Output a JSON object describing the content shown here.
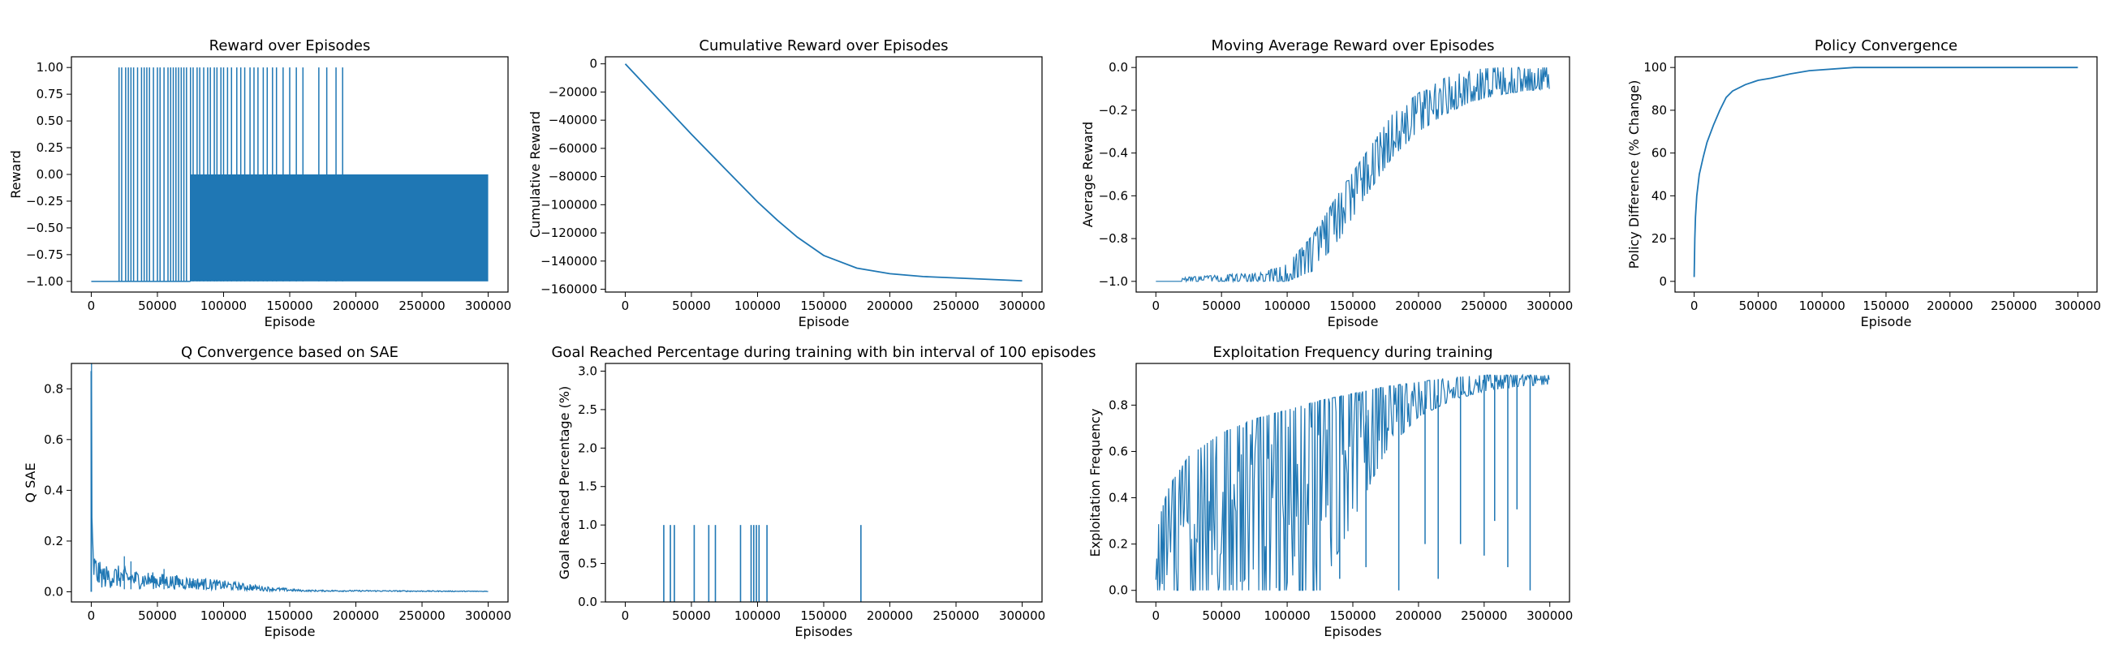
{
  "figure": {
    "suptitle": "",
    "line_color": "#1f77b4"
  },
  "chart_data": [
    {
      "id": "reward",
      "type": "line",
      "title": "Reward over Episodes",
      "xlabel": "Episode",
      "ylabel": "Reward",
      "xlim": [
        -15000,
        315000
      ],
      "ylim": [
        -1.1,
        1.1
      ],
      "xticks": [
        0,
        50000,
        100000,
        150000,
        200000,
        250000,
        300000
      ],
      "xtick_labels": [
        "0",
        "50000",
        "100000",
        "150000",
        "200000",
        "250000",
        "300000"
      ],
      "yticks": [
        -1.0,
        -0.75,
        -0.5,
        -0.25,
        0.0,
        0.25,
        0.5,
        0.75,
        1.0
      ],
      "ytick_labels": [
        "−1.00",
        "−0.75",
        "−0.50",
        "−0.25",
        "0.00",
        "0.25",
        "0.50",
        "0.75",
        "1.00"
      ],
      "grid": false,
      "series": [
        {
          "x": [
            0,
            20000,
            75000,
            300000
          ],
          "y": [
            -1.0,
            -1.0,
            0.0,
            0.0
          ],
          "band": {
            "x": [
              75000,
              300000
            ],
            "low": -1.0,
            "high": 0.0
          },
          "spikes_to": 1.0,
          "spikes_x": [
            21000,
            23000,
            26000,
            28000,
            30000,
            32000,
            35000,
            38000,
            40000,
            42000,
            44000,
            47000,
            50000,
            52000,
            55000,
            58000,
            60000,
            62000,
            64000,
            66000,
            68000,
            70000,
            72000,
            75000,
            77000,
            80000,
            82000,
            85000,
            88000,
            90000,
            93000,
            95000,
            98000,
            100000,
            103000,
            106000,
            110000,
            113000,
            116000,
            120000,
            123000,
            126000,
            130000,
            133000,
            137000,
            140000,
            145000,
            150000,
            155000,
            160000,
            172000,
            178000,
            185000,
            190000
          ]
        }
      ]
    },
    {
      "id": "cumulative",
      "type": "line",
      "title": "Cumulative Reward over Episodes",
      "xlabel": "Episode",
      "ylabel": "Cumulative Reward",
      "xlim": [
        -15000,
        315000
      ],
      "ylim": [
        -162000,
        5000
      ],
      "xticks": [
        0,
        50000,
        100000,
        150000,
        200000,
        250000,
        300000
      ],
      "xtick_labels": [
        "0",
        "50000",
        "100000",
        "150000",
        "200000",
        "250000",
        "300000"
      ],
      "yticks": [
        0,
        -20000,
        -40000,
        -60000,
        -80000,
        -100000,
        -120000,
        -140000,
        -160000
      ],
      "ytick_labels": [
        "0",
        "−20000",
        "−40000",
        "−60000",
        "−80000",
        "−100000",
        "−120000",
        "−140000",
        "−160000"
      ],
      "grid": false,
      "series": [
        {
          "x": [
            0,
            25000,
            50000,
            75000,
            100000,
            115000,
            130000,
            150000,
            175000,
            200000,
            225000,
            250000,
            275000,
            300000
          ],
          "y": [
            0,
            -25000,
            -50000,
            -74000,
            -98000,
            -111000,
            -123000,
            -136000,
            -145000,
            -149000,
            -151000,
            -152000,
            -153000,
            -154000
          ]
        }
      ]
    },
    {
      "id": "moving-average",
      "type": "line",
      "title": "Moving Average Reward over Episodes",
      "xlabel": "Episode",
      "ylabel": "Average Reward",
      "xlim": [
        -15000,
        315000
      ],
      "ylim": [
        -1.05,
        0.05
      ],
      "xticks": [
        0,
        50000,
        100000,
        150000,
        200000,
        250000,
        300000
      ],
      "xtick_labels": [
        "0",
        "50000",
        "100000",
        "150000",
        "200000",
        "250000",
        "300000"
      ],
      "yticks": [
        -1.0,
        -0.8,
        -0.6,
        -0.4,
        -0.2,
        0.0
      ],
      "ytick_labels": [
        "−1.0",
        "−0.8",
        "−0.6",
        "−0.4",
        "−0.2",
        "0.0"
      ],
      "grid": false,
      "series": [
        {
          "x": [
            0,
            25000,
            50000,
            80000,
            100000,
            120000,
            140000,
            160000,
            180000,
            200000,
            220000,
            240000,
            260000,
            280000,
            300000
          ],
          "y_low": [
            -1.0,
            -1.0,
            -1.0,
            -1.0,
            -1.0,
            -0.95,
            -0.8,
            -0.6,
            -0.42,
            -0.3,
            -0.22,
            -0.16,
            -0.13,
            -0.11,
            -0.1
          ],
          "y_high": [
            -1.0,
            -0.98,
            -0.97,
            -0.96,
            -0.92,
            -0.78,
            -0.58,
            -0.4,
            -0.22,
            -0.12,
            -0.05,
            -0.01,
            0.0,
            0.0,
            0.0
          ],
          "noise_from": 20000
        }
      ]
    },
    {
      "id": "policy-convergence",
      "type": "line",
      "title": "Policy Convergence",
      "xlabel": "Episode",
      "ylabel": "Policy Difference (% Change)",
      "xlim": [
        -15000,
        315000
      ],
      "ylim": [
        -5,
        105
      ],
      "xticks": [
        0,
        50000,
        100000,
        150000,
        200000,
        250000,
        300000
      ],
      "xtick_labels": [
        "0",
        "50000",
        "100000",
        "150000",
        "200000",
        "250000",
        "300000"
      ],
      "yticks": [
        0,
        20,
        40,
        60,
        80,
        100
      ],
      "ytick_labels": [
        "0",
        "20",
        "40",
        "60",
        "80",
        "100"
      ],
      "grid": false,
      "series": [
        {
          "x": [
            0,
            500,
            1000,
            2000,
            4000,
            7000,
            10000,
            15000,
            20000,
            25000,
            30000,
            40000,
            50000,
            60000,
            75000,
            90000,
            125000,
            200000,
            300000
          ],
          "y": [
            2,
            20,
            30,
            40,
            50,
            58,
            65,
            73,
            80,
            86,
            89,
            92,
            94,
            95,
            97,
            98.5,
            100,
            100,
            100
          ]
        }
      ]
    },
    {
      "id": "q-convergence",
      "type": "line",
      "title": "Q Convergence based on SAE",
      "xlabel": "Episode",
      "ylabel": "Q SAE",
      "xlim": [
        -15000,
        315000
      ],
      "ylim": [
        -0.04,
        0.9
      ],
      "xticks": [
        0,
        50000,
        100000,
        150000,
        200000,
        250000,
        300000
      ],
      "xtick_labels": [
        "0",
        "50000",
        "100000",
        "150000",
        "200000",
        "250000",
        "300000"
      ],
      "yticks": [
        0.0,
        0.2,
        0.4,
        0.6,
        0.8
      ],
      "ytick_labels": [
        "0.0",
        "0.2",
        "0.4",
        "0.6",
        "0.8"
      ],
      "grid": false,
      "series": [
        {
          "x": [
            0,
            300,
            800,
            1500,
            3000,
            6000,
            10000,
            20000,
            30000,
            50000,
            75000,
            100000,
            130000,
            160000,
            300000
          ],
          "y": [
            0.87,
            0.27,
            0.2,
            0.12,
            0.1,
            0.08,
            0.07,
            0.07,
            0.06,
            0.05,
            0.04,
            0.03,
            0.015,
            0.005,
            0.002
          ],
          "peaks": [
            [
              25000,
              0.14
            ],
            [
              30000,
              0.12
            ],
            [
              55000,
              0.09
            ],
            [
              85000,
              0.05
            ],
            [
              120000,
              0.03
            ]
          ]
        }
      ]
    },
    {
      "id": "goal-reached",
      "type": "bar",
      "title": "Goal Reached Percentage during training with bin interval of 100 episodes",
      "xlabel": "Episodes",
      "ylabel": "Goal Reached Percentage (%)",
      "xlim": [
        -15000,
        315000
      ],
      "ylim": [
        0,
        3.1
      ],
      "xticks": [
        0,
        50000,
        100000,
        150000,
        200000,
        250000,
        300000
      ],
      "xtick_labels": [
        "0",
        "50000",
        "100000",
        "150000",
        "200000",
        "250000",
        "300000"
      ],
      "yticks": [
        0.0,
        0.5,
        1.0,
        1.5,
        2.0,
        2.5,
        3.0
      ],
      "ytick_labels": [
        "0.0",
        "0.5",
        "1.0",
        "1.5",
        "2.0",
        "2.5",
        "3.0"
      ],
      "grid": false,
      "series": [
        {
          "x": [
            29000,
            34000,
            37000,
            52000,
            63000,
            68000,
            87000,
            95000,
            97000,
            99000,
            101000,
            107000,
            178000
          ],
          "values": [
            1,
            1,
            1,
            1,
            1,
            1,
            1,
            1,
            1,
            1,
            1,
            1,
            1
          ]
        }
      ]
    },
    {
      "id": "exploitation",
      "type": "line",
      "title": "Exploitation Frequency during training",
      "xlabel": "Episodes",
      "ylabel": "Exploitation Frequency",
      "xlim": [
        -15000,
        315000
      ],
      "ylim": [
        -0.05,
        0.98
      ],
      "xticks": [
        0,
        50000,
        100000,
        150000,
        200000,
        250000,
        300000
      ],
      "xtick_labels": [
        "0",
        "50000",
        "100000",
        "150000",
        "200000",
        "250000",
        "300000"
      ],
      "yticks": [
        0.0,
        0.2,
        0.4,
        0.6,
        0.8
      ],
      "ytick_labels": [
        "0.0",
        "0.2",
        "0.4",
        "0.6",
        "0.8"
      ],
      "grid": false,
      "series": [
        {
          "x": [
            0,
            2000,
            10000,
            25000,
            50000,
            75000,
            100000,
            125000,
            150000,
            175000,
            200000,
            225000,
            250000,
            275000,
            300000
          ],
          "y_high": [
            0.05,
            0.3,
            0.45,
            0.58,
            0.68,
            0.74,
            0.78,
            0.82,
            0.85,
            0.88,
            0.9,
            0.92,
            0.93,
            0.93,
            0.93
          ],
          "y_low": [
            0.0,
            0.0,
            0.0,
            0.0,
            0.0,
            0.0,
            0.0,
            0.0,
            0.3,
            0.6,
            0.75,
            0.82,
            0.86,
            0.88,
            0.89
          ],
          "drops": [
            [
              125000,
              0.0
            ],
            [
              140000,
              0.05
            ],
            [
              160000,
              0.1
            ],
            [
              185000,
              0.0
            ],
            [
              205000,
              0.2
            ],
            [
              215000,
              0.05
            ],
            [
              232000,
              0.2
            ],
            [
              250000,
              0.15
            ],
            [
              258000,
              0.3
            ],
            [
              268000,
              0.1
            ],
            [
              275000,
              0.35
            ],
            [
              285000,
              0.0
            ]
          ]
        }
      ]
    }
  ]
}
